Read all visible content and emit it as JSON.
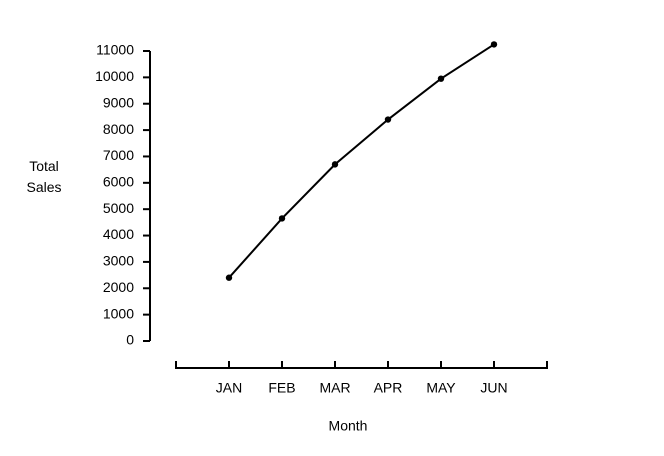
{
  "chart_data": {
    "type": "line",
    "xlabel": "Month",
    "ylabel": "Total Sales",
    "categories": [
      "JAN",
      "FEB",
      "MAR",
      "APR",
      "MAY",
      "JUN"
    ],
    "values": [
      2400,
      4650,
      6700,
      8400,
      9950,
      11250
    ],
    "color": "#000000",
    "ylim": [
      0,
      11000
    ],
    "yticks": [
      0,
      1000,
      2000,
      3000,
      4000,
      5000,
      6000,
      7000,
      8000,
      9000,
      10000,
      11000
    ]
  }
}
